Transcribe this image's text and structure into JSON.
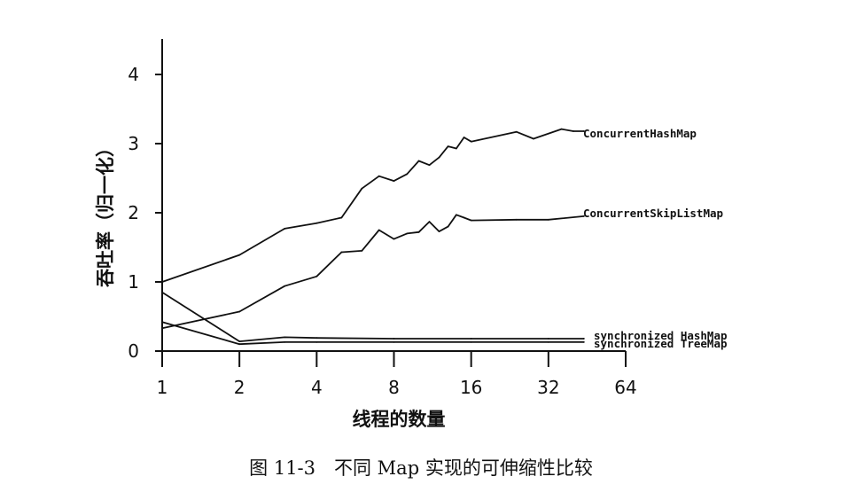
{
  "figure": {
    "caption": "图 11-3　不同 Map 实现的可伸缩性比较"
  },
  "chart_data": {
    "type": "line",
    "ylabel": "吞吐率（归一化）",
    "xlabel": "线程的数量",
    "x_scale": "log2",
    "x_ticks": [
      1,
      2,
      4,
      8,
      16,
      32,
      64
    ],
    "x_tick_labels": [
      "1",
      "2",
      "4",
      "8",
      "16",
      "32",
      "64"
    ],
    "y_ticks": [
      0,
      1,
      2,
      3,
      4
    ],
    "y_tick_labels": [
      "0",
      "1",
      "2",
      "3",
      "4"
    ],
    "ylim": [
      0,
      4.5
    ],
    "xlim": [
      1,
      64
    ],
    "grid": false,
    "legend": "inline labels at right end of each series",
    "series": [
      {
        "name": "ConcurrentHashMap",
        "x": [
          1,
          2,
          3,
          4,
          5,
          6,
          7,
          8,
          9,
          10,
          11,
          12,
          13,
          14,
          15,
          16,
          24,
          28,
          36,
          40,
          44
        ],
        "y": [
          1.0,
          1.39,
          1.77,
          1.85,
          1.93,
          2.35,
          2.53,
          2.46,
          2.56,
          2.75,
          2.69,
          2.8,
          2.96,
          2.93,
          3.09,
          3.03,
          3.17,
          3.07,
          3.21,
          3.18,
          3.18
        ]
      },
      {
        "name": "ConcurrentSkipListMap",
        "x": [
          1,
          2,
          3,
          4,
          5,
          6,
          7,
          8,
          9,
          10,
          11,
          12,
          13,
          14,
          15,
          16,
          24,
          32,
          44
        ],
        "y": [
          0.33,
          0.57,
          0.94,
          1.08,
          1.43,
          1.45,
          1.75,
          1.62,
          1.7,
          1.72,
          1.87,
          1.73,
          1.8,
          1.97,
          1.93,
          1.89,
          1.9,
          1.9,
          1.95
        ]
      },
      {
        "name": "synchronized HashMap",
        "x": [
          1,
          2,
          3,
          4,
          8,
          16,
          32,
          44
        ],
        "y": [
          0.85,
          0.14,
          0.2,
          0.19,
          0.18,
          0.18,
          0.18,
          0.18
        ]
      },
      {
        "name": "synchronized TreeMap",
        "x": [
          1,
          2,
          3,
          4,
          8,
          16,
          32,
          44
        ],
        "y": [
          0.42,
          0.1,
          0.13,
          0.13,
          0.13,
          0.13,
          0.13,
          0.13
        ]
      }
    ]
  }
}
